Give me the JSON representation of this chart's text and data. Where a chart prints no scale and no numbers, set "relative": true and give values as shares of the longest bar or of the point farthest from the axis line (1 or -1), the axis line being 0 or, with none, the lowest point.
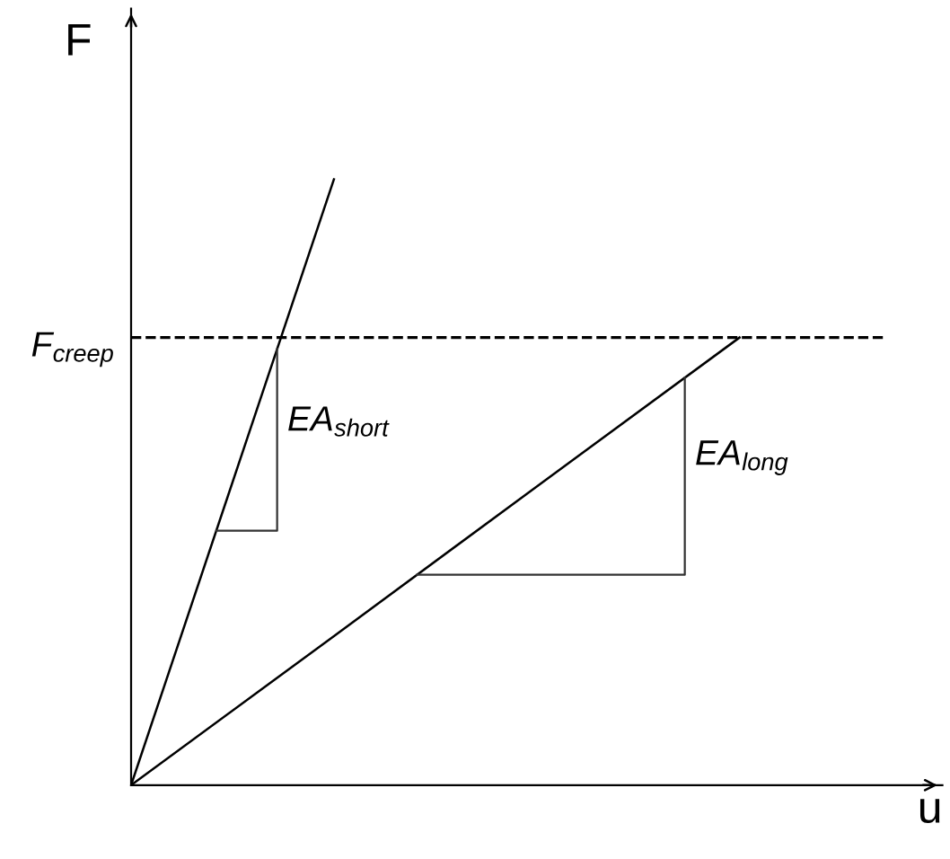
{
  "chart_data": {
    "type": "line",
    "relative": true,
    "xlabel": "u",
    "ylabel": "F",
    "marker": "none",
    "tick_labels": false,
    "categories": [
      null,
      null,
      null,
      null,
      null
    ],
    "series": [
      {
        "color": "#000000",
        "values": [
          0,
          1,
          null,
          null,
          null
        ]
      },
      {
        "color": "#000000",
        "values": [
          0,
          0.246,
          0.493,
          0.739,
          null
        ]
      }
    ],
    "ref_lines": [
      {
        "axis": "y",
        "value": 0.739,
        "label": "F$_{creep}$",
        "line_style": "dashed",
        "color": "#000000"
      }
    ],
    "annotations": [
      "EA$_{short}$",
      "EA$_{long}$"
    ]
  }
}
